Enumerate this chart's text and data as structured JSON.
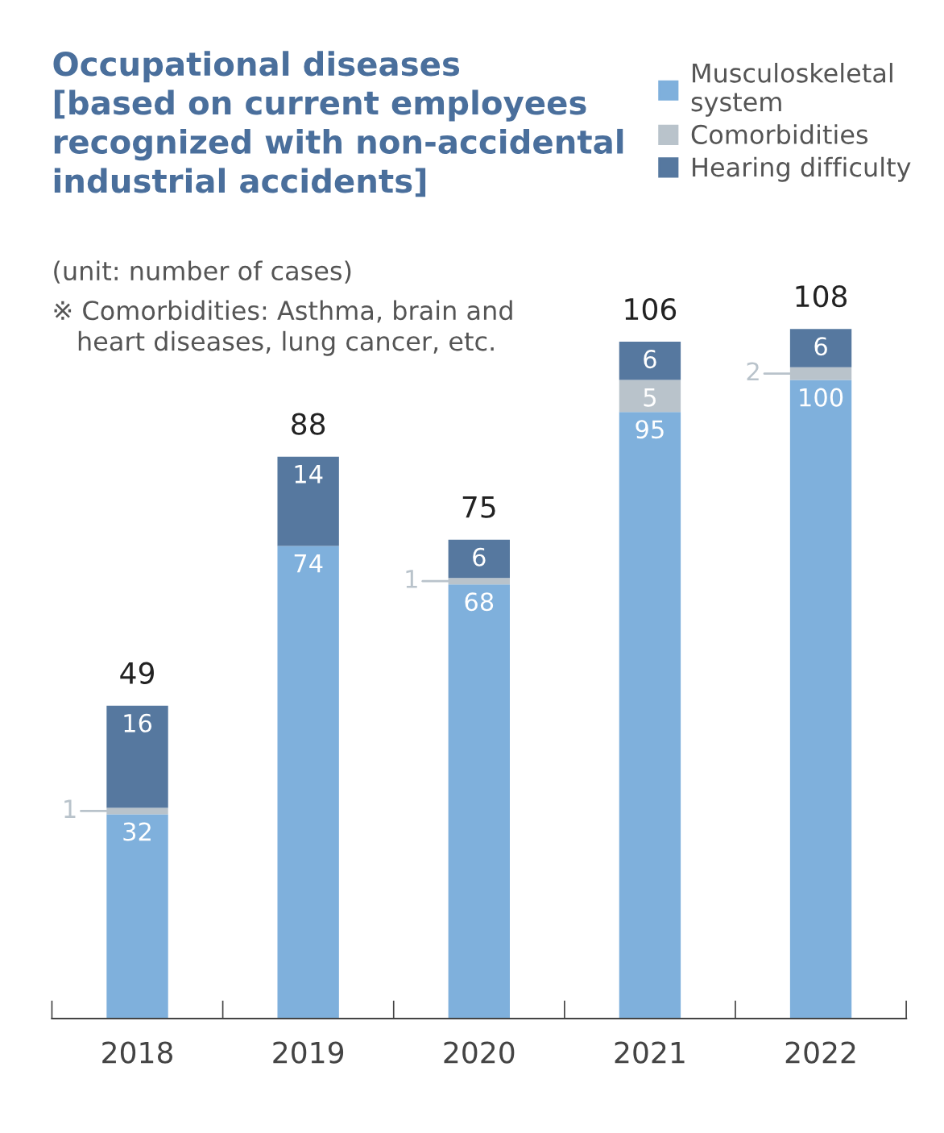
{
  "chart_data": {
    "type": "bar",
    "title": "Occupational diseases\n[based on current employees\nrecognized with non-accidental\nindustrial accidents]",
    "annotations": [
      "(unit: number of cases)",
      "※ Comorbidities: Asthma, brain and\n   heart diseases, lung cancer, etc."
    ],
    "categories": [
      "2018",
      "2019",
      "2020",
      "2021",
      "2022"
    ],
    "stacked": true,
    "series": [
      {
        "name": "Musculoskeletal\nsystem",
        "color": "#7fb0dc",
        "values": [
          32,
          74,
          68,
          95,
          100
        ]
      },
      {
        "name": "Comorbidities",
        "color": "#b9c3cb",
        "values": [
          1,
          null,
          1,
          5,
          2
        ]
      },
      {
        "name": "Hearing difficulty",
        "color": "#56789f",
        "values": [
          16,
          14,
          6,
          6,
          6
        ]
      }
    ],
    "totals": [
      "49",
      "88",
      "75",
      "106",
      "108"
    ],
    "data_labels": true,
    "legend": "top right",
    "grid": false
  }
}
